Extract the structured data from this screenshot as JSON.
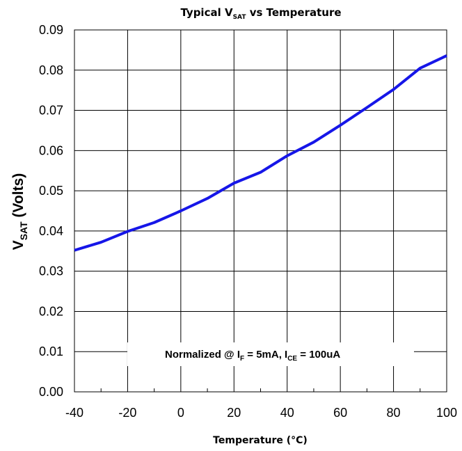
{
  "chart_data": {
    "type": "line",
    "title": {
      "main": "Typical V",
      "sub": "SAT",
      "rest": " vs Temperature"
    },
    "xlabel": "Temperature (°C)",
    "ylabel": {
      "main": "V",
      "sub": "SAT",
      "rest": "  (Volts)"
    },
    "xlim": [
      -40,
      100
    ],
    "ylim": [
      0.0,
      0.09
    ],
    "x_ticks": [
      -40,
      -20,
      0,
      20,
      40,
      60,
      80,
      100
    ],
    "x_tick_labels": [
      "-40",
      "-20",
      "0",
      "20",
      "40",
      "60",
      "80",
      "100"
    ],
    "y_ticks": [
      0.0,
      0.01,
      0.02,
      0.03,
      0.04,
      0.05,
      0.06,
      0.07,
      0.08,
      0.09
    ],
    "y_tick_labels": [
      "0.00",
      "0.01",
      "0.02",
      "0.03",
      "0.04",
      "0.05",
      "0.06",
      "0.07",
      "0.08",
      "0.09"
    ],
    "grid": true,
    "series": [
      {
        "color": "#1616e8",
        "x": [
          -40,
          -30,
          -20,
          -10,
          0,
          10,
          20,
          30,
          40,
          50,
          60,
          70,
          80,
          90,
          100
        ],
        "y": [
          0.0352,
          0.0372,
          0.0399,
          0.0421,
          0.045,
          0.0481,
          0.0519,
          0.0546,
          0.0587,
          0.0621,
          0.0663,
          0.0707,
          0.0752,
          0.0805,
          0.0836
        ]
      }
    ],
    "annotation": {
      "parts": [
        {
          "text": "Normalized @ I",
          "sub": false
        },
        {
          "text": "F",
          "sub": true
        },
        {
          "text": " = 5mA, I",
          "sub": false
        },
        {
          "text": "CE",
          "sub": true
        },
        {
          "text": " =  100uA",
          "sub": false
        }
      ]
    }
  }
}
